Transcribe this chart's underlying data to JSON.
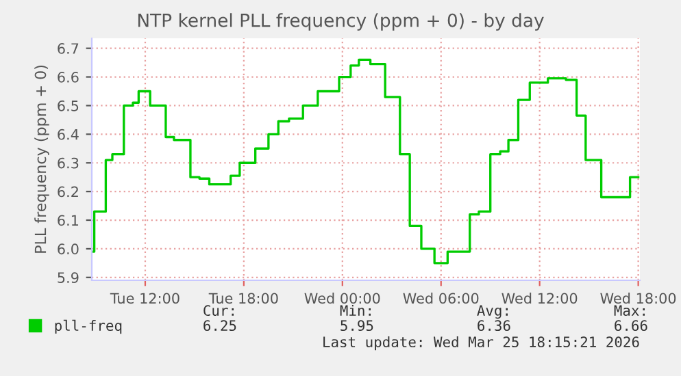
{
  "chart_data": {
    "type": "step",
    "title": "NTP kernel PLL frequency (ppm + 0) - by day",
    "ylabel": "PLL frequency (ppm + 0)",
    "x": [
      "2026-03-24T08:45",
      "2026-03-24T08:54",
      "2026-03-24T09:36",
      "2026-03-24T10:00",
      "2026-03-24T10:42",
      "2026-03-24T11:15",
      "2026-03-24T11:36",
      "2026-03-24T12:18",
      "2026-03-24T13:15",
      "2026-03-24T13:45",
      "2026-03-24T14:45",
      "2026-03-24T15:18",
      "2026-03-24T15:54",
      "2026-03-24T17:12",
      "2026-03-24T17:45",
      "2026-03-24T18:42",
      "2026-03-24T19:30",
      "2026-03-24T20:06",
      "2026-03-24T20:45",
      "2026-03-24T21:36",
      "2026-03-24T22:30",
      "2026-03-24T23:48",
      "2026-03-25T00:30",
      "2026-03-25T01:00",
      "2026-03-25T01:42",
      "2026-03-25T02:36",
      "2026-03-25T03:30",
      "2026-03-25T04:06",
      "2026-03-25T04:48",
      "2026-03-25T05:36",
      "2026-03-25T06:24",
      "2026-03-25T07:45",
      "2026-03-25T08:18",
      "2026-03-25T09:00",
      "2026-03-25T09:36",
      "2026-03-25T10:06",
      "2026-03-25T10:42",
      "2026-03-25T11:24",
      "2026-03-25T12:30",
      "2026-03-25T13:36",
      "2026-03-25T14:15",
      "2026-03-25T14:48",
      "2026-03-25T15:45",
      "2026-03-25T17:30",
      "2026-03-25T18:00"
    ],
    "series": [
      {
        "name": "pll-freq",
        "color": "#00cc00",
        "values": [
          5.99,
          6.13,
          6.31,
          6.33,
          6.5,
          6.51,
          6.55,
          6.5,
          6.39,
          6.38,
          6.25,
          6.245,
          6.225,
          6.255,
          6.3,
          6.35,
          6.4,
          6.445,
          6.455,
          6.5,
          6.55,
          6.6,
          6.64,
          6.66,
          6.645,
          6.53,
          6.33,
          6.08,
          6.0,
          5.95,
          5.99,
          6.12,
          6.13,
          6.33,
          6.34,
          6.38,
          6.52,
          6.58,
          6.595,
          6.59,
          6.465,
          6.31,
          6.18,
          6.25,
          6.25
        ]
      }
    ],
    "xlim": [
      "2026-03-24T08:45",
      "2026-03-25T18:06"
    ],
    "xticks": [
      {
        "value": "2026-03-24T12:00",
        "label": "Tue 12:00"
      },
      {
        "value": "2026-03-24T18:00",
        "label": "Tue 18:00"
      },
      {
        "value": "2026-03-25T00:00",
        "label": "Wed 00:00"
      },
      {
        "value": "2026-03-25T06:00",
        "label": "Wed 06:00"
      },
      {
        "value": "2026-03-25T12:00",
        "label": "Wed 12:00"
      },
      {
        "value": "2026-03-25T18:00",
        "label": "Wed 18:00"
      }
    ],
    "ylim": [
      5.89,
      6.735
    ],
    "yticks": [
      5.9,
      {
        "value": 6.0,
        "label": "6.0"
      },
      6.1,
      6.2,
      6.3,
      6.4,
      6.5,
      6.6,
      6.7
    ],
    "grid": true,
    "legend": "bottom",
    "annotations": [
      "Cur:",
      "6.25",
      "Min:",
      "5.95",
      "Avg:",
      "6.36",
      "Max:",
      "6.66",
      "Last update: Wed Mar 25 18:15:21 2026"
    ]
  }
}
